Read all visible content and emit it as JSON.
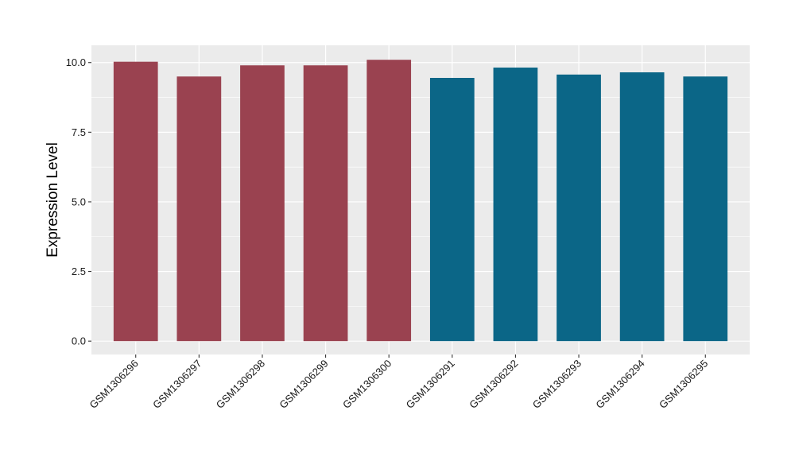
{
  "chart_data": {
    "type": "bar",
    "title": "",
    "xlabel": "",
    "ylabel": "Expression Level",
    "categories": [
      "GSM1306296",
      "GSM1306297",
      "GSM1306298",
      "GSM1306299",
      "GSM1306300",
      "GSM1306291",
      "GSM1306292",
      "GSM1306293",
      "GSM1306294",
      "GSM1306295"
    ],
    "values": [
      10.03,
      9.5,
      9.9,
      9.9,
      10.1,
      9.45,
      9.82,
      9.57,
      9.65,
      9.5
    ],
    "bar_colors": [
      "#9a4250",
      "#9a4250",
      "#9a4250",
      "#9a4250",
      "#9a4250",
      "#0b6687",
      "#0b6687",
      "#0b6687",
      "#0b6687",
      "#0b6687"
    ],
    "ylim": [
      -0.48,
      10.62
    ],
    "yticks": [
      0.0,
      2.5,
      5.0,
      7.5,
      10.0
    ],
    "ytick_labels": [
      "0.0",
      "2.5",
      "5.0",
      "7.5",
      "10.0"
    ],
    "grid": true,
    "panel_background": "#ebebeb",
    "grid_color": "#ffffff",
    "legend": "none"
  }
}
